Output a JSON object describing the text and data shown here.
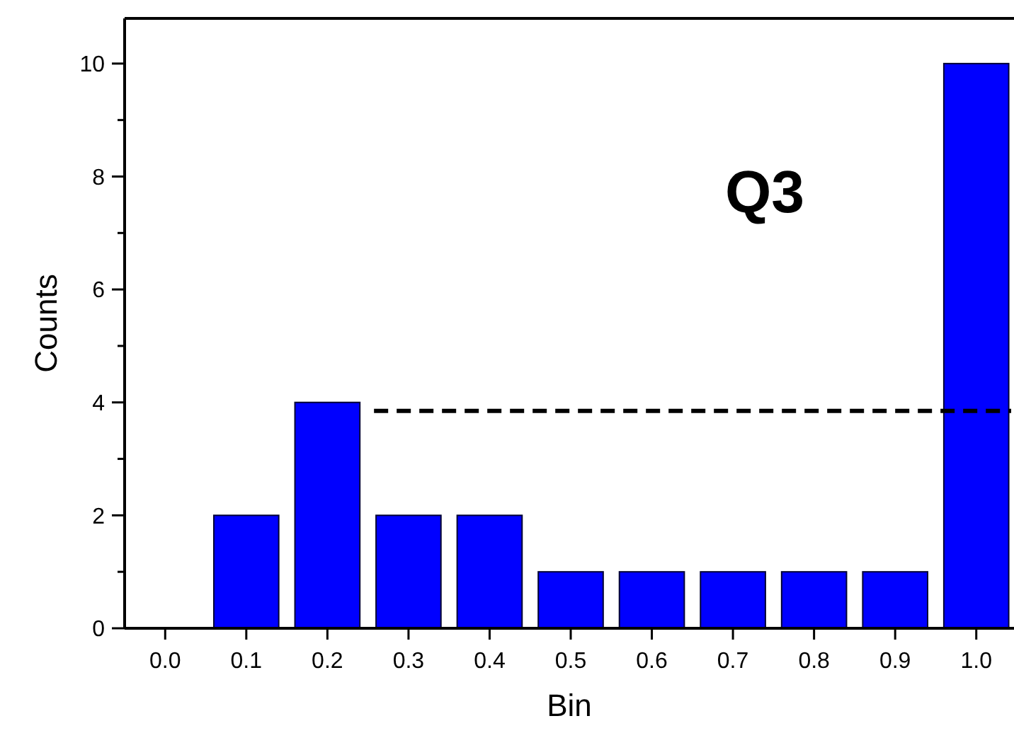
{
  "chart_data": {
    "type": "bar",
    "xlabel": "Bin",
    "ylabel": "Counts",
    "categories": [
      "0.0",
      "0.1",
      "0.2",
      "0.3",
      "0.4",
      "0.5",
      "0.6",
      "0.7",
      "0.8",
      "0.9",
      "1.0"
    ],
    "values": [
      0,
      2,
      4,
      2,
      2,
      1,
      1,
      1,
      1,
      1,
      10
    ],
    "color": "#0000ff",
    "ylim": [
      0,
      10.8
    ],
    "yticks": [
      0,
      {
        "value": 1,
        "label": null
      },
      2,
      {
        "value": 3,
        "label": null
      },
      4,
      {
        "value": 5,
        "label": null
      },
      6,
      {
        "value": 7,
        "label": null
      },
      8,
      {
        "value": 9,
        "label": null
      },
      10
    ],
    "ref_lines": [
      {
        "axis": "y",
        "value": 3.85,
        "line_style": "dashed",
        "color": "#000000"
      }
    ],
    "annotations": [
      "Q3"
    ],
    "grid": false
  }
}
